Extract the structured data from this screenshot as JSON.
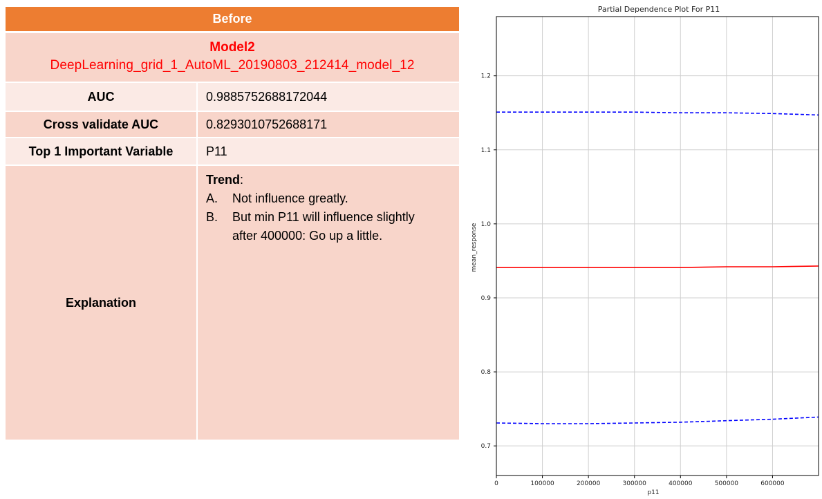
{
  "table": {
    "header": "Before",
    "model_label": "Model2",
    "model_id": "DeepLearning_grid_1_AutoML_20190803_212414_model_12",
    "rows": [
      {
        "label": "AUC",
        "value": "0.9885752688172044"
      },
      {
        "label": "Cross validate AUC",
        "value": "0.8293010752688171"
      },
      {
        "label": "Top 1 Important Variable",
        "value": "P11"
      }
    ],
    "explanation_label": "Explanation",
    "trend_title": "Trend",
    "trend_colon": ":",
    "points": [
      {
        "marker": "A.",
        "text": "Not influence greatly."
      },
      {
        "marker": "B.",
        "text": "But min P11 will influence slightly after 400000: Go up a little."
      }
    ],
    "colors": {
      "header": "#ED7D31",
      "row_dark": "#F8D5CA",
      "row_light": "#FBEAE5",
      "model_text": "#FF0000"
    }
  },
  "chart_data": {
    "type": "line",
    "title": "Partial Dependence Plot For P11",
    "xlabel": "p11",
    "ylabel": "mean_response",
    "xlim": [
      0,
      700000
    ],
    "ylim": [
      0.66,
      1.28
    ],
    "x_ticks": [
      0,
      100000,
      200000,
      300000,
      400000,
      500000,
      600000
    ],
    "y_ticks": [
      0.7,
      0.8,
      0.9,
      1.0,
      1.1,
      1.2
    ],
    "x_tick_labels": [
      "0",
      "100000",
      "200000",
      "300000",
      "400000",
      "500000",
      "600000"
    ],
    "y_tick_labels": [
      "0.7",
      "0.8",
      "0.9",
      "1.0",
      "1.1",
      "1.2"
    ],
    "grid": true,
    "x": [
      0,
      100000,
      200000,
      300000,
      400000,
      500000,
      600000,
      700000
    ],
    "series": [
      {
        "style": "dashed",
        "color": "#0000FF",
        "values": [
          1.151,
          1.151,
          1.151,
          1.151,
          1.15,
          1.15,
          1.149,
          1.147
        ]
      },
      {
        "style": "solid",
        "color": "#FF0000",
        "values": [
          0.941,
          0.941,
          0.941,
          0.941,
          0.941,
          0.942,
          0.942,
          0.943
        ]
      },
      {
        "style": "dashed",
        "color": "#0000FF",
        "values": [
          0.731,
          0.73,
          0.73,
          0.731,
          0.732,
          0.734,
          0.736,
          0.739
        ]
      }
    ]
  }
}
